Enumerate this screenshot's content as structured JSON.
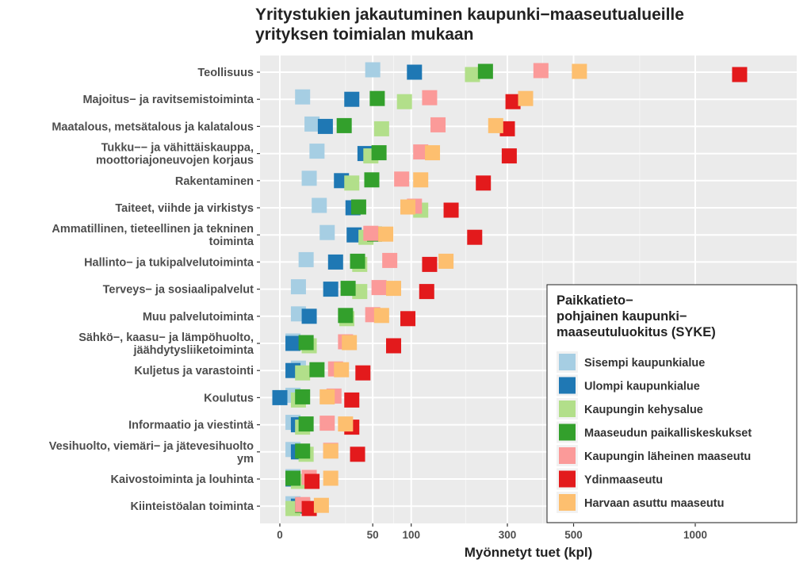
{
  "chart_data": {
    "type": "scatter",
    "title_lines": [
      "Yritystukien jakautuminen kaupunki−maaseutualueille",
      "yrityksen toimialan mukaan"
    ],
    "xlabel": "Myönnetyt tuet (kpl)",
    "x_scale": "sqrt",
    "xlim": [
      0,
      1250
    ],
    "x_ticks": [
      0,
      50,
      100,
      300,
      500,
      1000
    ],
    "grid": true,
    "legend": {
      "position": "bottom-right",
      "title_lines": [
        "Paikkatieto−",
        "pohjainen kaupunki−",
        "maaseutuluokitus (SYKE)"
      ]
    },
    "categories": [
      [
        "Teollisuus"
      ],
      [
        "Majoitus− ja ravitsemistoiminta"
      ],
      [
        "Maatalous, metsätalous ja kalatalous"
      ],
      [
        "Tukku−− ja vähittäiskauppa,",
        "moottoriajoneuvojen korjaus"
      ],
      [
        "Rakentaminen"
      ],
      [
        "Taiteet, viihde ja virkistys"
      ],
      [
        "Ammatillinen, tieteellinen ja tekninen",
        "toiminta"
      ],
      [
        "Hallinto− ja tukipalvelutoiminta"
      ],
      [
        "Terveys− ja sosiaalipalvelut"
      ],
      [
        "Muu palvelutoiminta"
      ],
      [
        "Sähkö−, kaasu− ja lämpöhuolto,",
        "jäähdytysliiketoiminta"
      ],
      [
        "Kuljetus ja varastointi"
      ],
      [
        "Koulutus"
      ],
      [
        "Informaatio ja viestintä"
      ],
      [
        "Vesihuolto, viemäri− ja jätevesihuolto",
        "ym"
      ],
      [
        "Kaivostoiminta ja louhinta"
      ],
      [
        "Kiinteistöalan toiminta"
      ]
    ],
    "series": [
      {
        "name": "Sisempi kaupunkialue",
        "color": "#a6cee3",
        "values": [
          50,
          3,
          6,
          8,
          5,
          9,
          13,
          4,
          2,
          2,
          1,
          2,
          1,
          1,
          1,
          1,
          1
        ]
      },
      {
        "name": "Ulompi kaupunkialue",
        "color": "#1f78b4",
        "values": [
          105,
          30,
          12,
          42,
          22,
          31,
          32,
          18,
          15,
          5,
          1,
          1,
          0,
          2,
          2,
          1,
          2
        ]
      },
      {
        "name": "Kaupungin kehysalue",
        "color": "#b2df8a",
        "values": [
          215,
          90,
          60,
          48,
          30,
          115,
          43,
          37,
          37,
          26,
          5,
          3,
          2,
          3,
          4,
          2,
          1
        ]
      },
      {
        "name": "Maaseudun paikalliskeskukset",
        "color": "#33a02c",
        "values": [
          245,
          55,
          24,
          57,
          49,
          36,
          52,
          35,
          27,
          25,
          4,
          8,
          3,
          4,
          3,
          1,
          3
        ]
      },
      {
        "name": "Kaupungin läheinen maaseutu",
        "color": "#fb9a99",
        "values": [
          395,
          130,
          145,
          115,
          86,
          105,
          48,
          70,
          57,
          50,
          25,
          18,
          17,
          13,
          15,
          5,
          3
        ]
      },
      {
        "name": "Ydinmaaseutu",
        "color": "#e31a1c",
        "values": [
          1225,
          315,
          300,
          305,
          240,
          170,
          220,
          130,
          125,
          95,
          75,
          40,
          30,
          30,
          35,
          6,
          5
        ]
      },
      {
        "name": "Harvaan asuttu maaseutu",
        "color": "#fdbf6f",
        "values": [
          520,
          350,
          270,
          135,
          115,
          95,
          65,
          160,
          75,
          60,
          28,
          22,
          13,
          25,
          15,
          15,
          10
        ]
      }
    ]
  }
}
